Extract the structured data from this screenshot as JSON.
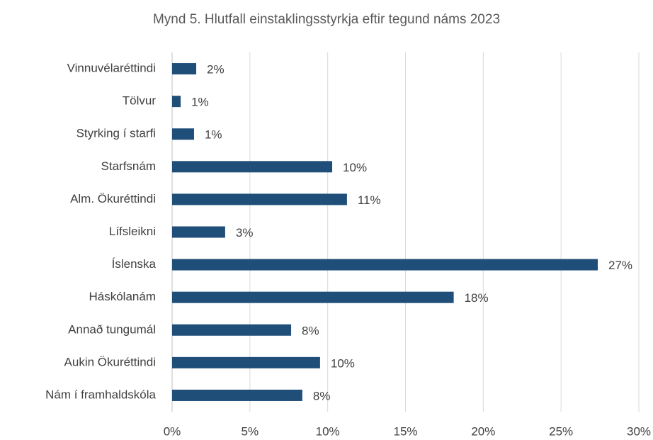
{
  "chart_data": {
    "type": "bar",
    "orientation": "horizontal",
    "title": "Mynd 5. Hlutfall einstaklingsstyrkja eftir tegund náms 2023",
    "categories": [
      "Vinnuvélaréttindi",
      "Tölvur",
      "Styrking í starfi",
      "Starfsnám",
      "Alm. Ökuréttindi",
      "Lífsleikni",
      "Íslenska",
      "Háskólanám",
      "Annað tungumál",
      "Aukin Ökuréttindi",
      "Nám í framhaldskóla"
    ],
    "values": [
      1.55,
      0.55,
      1.41,
      10.29,
      11.24,
      3.41,
      27.36,
      18.1,
      7.65,
      9.51,
      8.37
    ],
    "value_labels": [
      "2%",
      "1%",
      "1%",
      "10%",
      "11%",
      "3%",
      "27%",
      "18%",
      "8%",
      "10%",
      "8%"
    ],
    "color": "#1f4e79",
    "xlim": [
      0,
      30
    ],
    "xticks": [
      {
        "value": 0,
        "label": "0%"
      },
      {
        "value": 5,
        "label": "5%"
      },
      {
        "value": 10,
        "label": "10%"
      },
      {
        "value": 15,
        "label": "15%"
      },
      {
        "value": 20,
        "label": "20%"
      },
      {
        "value": 25,
        "label": "25%"
      },
      {
        "value": 30,
        "label": "30%"
      }
    ],
    "grid": true
  }
}
